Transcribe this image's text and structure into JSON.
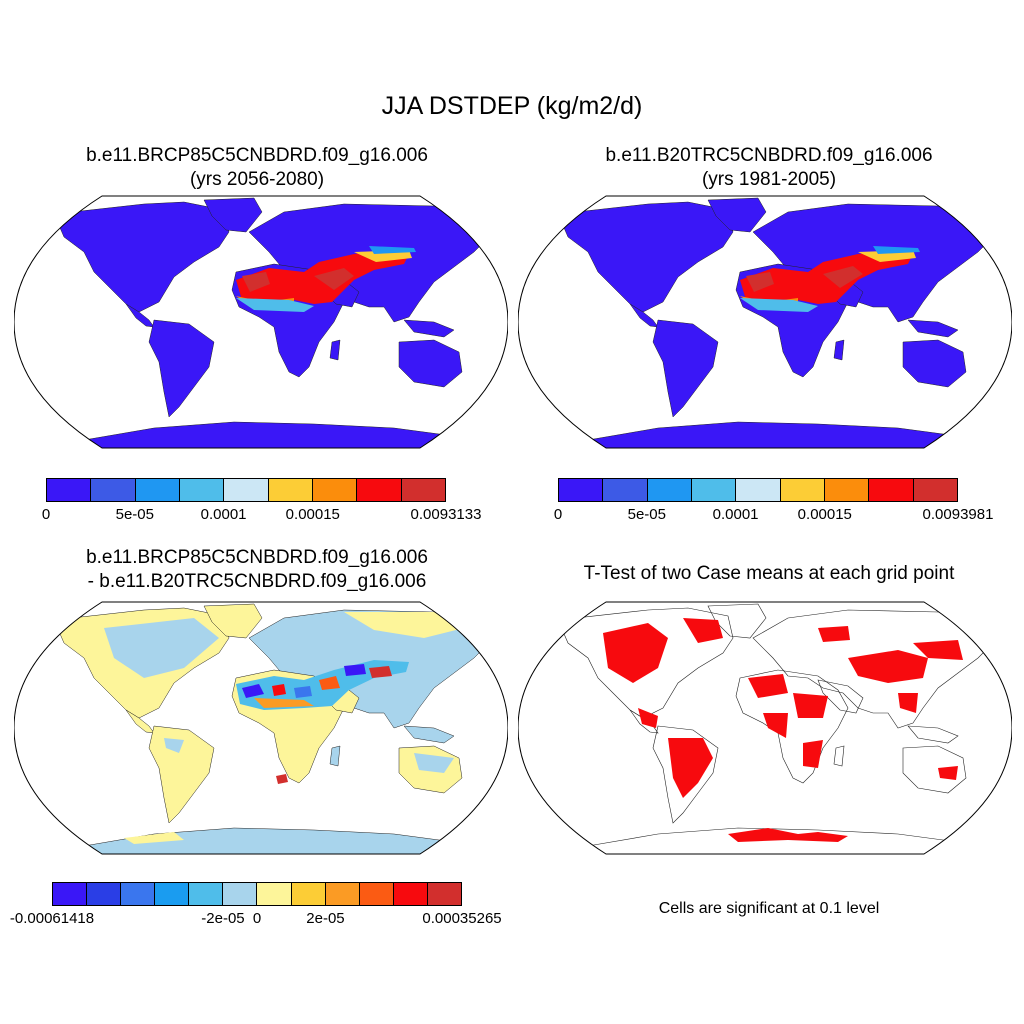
{
  "figure": {
    "title": "JJA DSTDEP (kg/m2/d)"
  },
  "panels": [
    {
      "id": "future",
      "title_line1": "b.e11.BRCP85C5CNBDRD.f09_g16.006",
      "title_line2": "(yrs 2056-2080)",
      "colorbar": {
        "colors": [
          "#3a17f7",
          "#3d5ae6",
          "#1f97f2",
          "#4fbdea",
          "#cce7f5",
          "#fccd36",
          "#fb8d0c",
          "#f70a0e",
          "#d22f2d"
        ],
        "ticks": [
          "0",
          "5e-05",
          "0.0001",
          "0.00015",
          "0.0093133"
        ]
      }
    },
    {
      "id": "historical",
      "title_line1": "b.e11.B20TRC5CNBDRD.f09_g16.006",
      "title_line2": "(yrs 1981-2005)",
      "colorbar": {
        "colors": [
          "#3a17f7",
          "#3d5ae6",
          "#1f97f2",
          "#4fbdea",
          "#cce7f5",
          "#fccd36",
          "#fb8d0c",
          "#f70a0e",
          "#d22f2d"
        ],
        "ticks": [
          "0",
          "5e-05",
          "0.0001",
          "0.00015",
          "0.0093981"
        ]
      }
    },
    {
      "id": "difference",
      "title_line1": "b.e11.BRCP85C5CNBDRD.f09_g16.006",
      "title_line2": "- b.e11.B20TRC5CNBDRD.f09_g16.006",
      "colorbar": {
        "colors": [
          "#3a17f7",
          "#2a3ee6",
          "#3a76ee",
          "#1a9cf0",
          "#4fbdea",
          "#a8d4ec",
          "#fdf59a",
          "#fccd36",
          "#fb9b24",
          "#fb5b13",
          "#f70a0e",
          "#d22f2d"
        ],
        "ticks": [
          "-0.00061418",
          "-2e-05",
          "0",
          "2e-05",
          "0.00035265"
        ]
      }
    },
    {
      "id": "ttest",
      "title_line1": "T-Test of two Case means at each grid point",
      "note": "Cells are significant at 0.1 level"
    }
  ]
}
